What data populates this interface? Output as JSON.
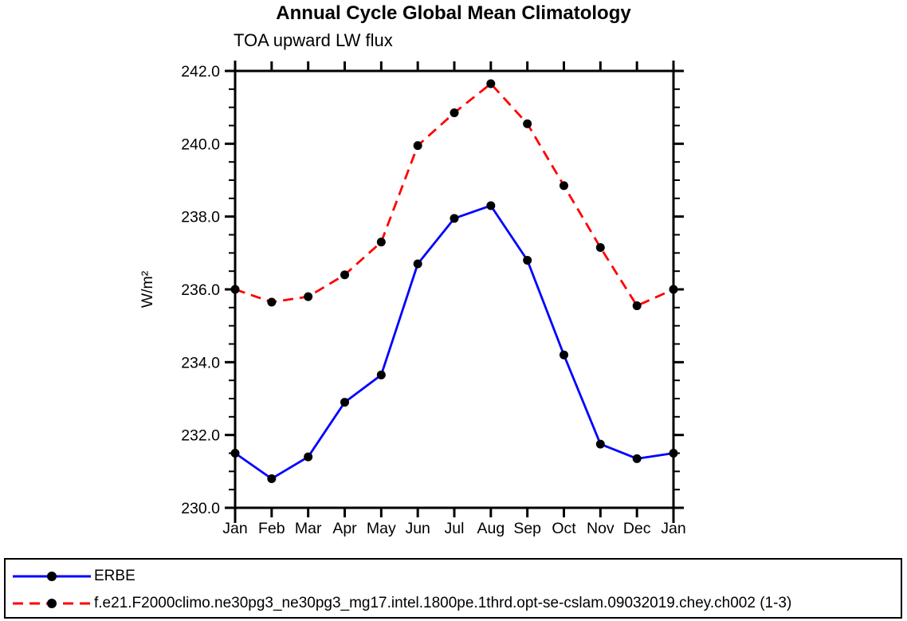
{
  "title": "Annual Cycle Global Mean Climatology",
  "subtitle": "TOA upward LW flux",
  "chart_data": {
    "type": "line",
    "title": "Annual Cycle Global Mean Climatology",
    "subtitle": "TOA upward LW flux",
    "xlabel": "",
    "ylabel": "W/m²",
    "categories": [
      "Jan",
      "Feb",
      "Mar",
      "Apr",
      "May",
      "Jun",
      "Jul",
      "Aug",
      "Sep",
      "Oct",
      "Nov",
      "Dec",
      "Jan"
    ],
    "series": [
      {
        "name": "ERBE",
        "color": "#0000ff",
        "style": "solid",
        "values": [
          231.5,
          230.8,
          231.4,
          232.9,
          233.65,
          236.7,
          237.95,
          238.3,
          236.8,
          234.2,
          231.75,
          231.35,
          231.5
        ]
      },
      {
        "name": "f.e21.F2000climo.ne30pg3_ne30pg3_mg17.intel.1800pe.1thrd.opt-se-cslam.09032019.chey.ch002 (1-3)",
        "color": "#ff0000",
        "style": "dashed",
        "values": [
          236.0,
          235.65,
          235.8,
          236.4,
          237.3,
          239.95,
          240.85,
          241.65,
          240.55,
          238.85,
          237.15,
          235.55,
          236.0
        ]
      }
    ],
    "ylim": [
      230.0,
      242.0
    ],
    "y_major_step": 2.0,
    "y_minor_step": 0.5,
    "ytick_decimals": 1,
    "grid": false,
    "marker": "filled-circle",
    "marker_color": "#000000",
    "axis_color": "#000000",
    "legend_position": "bottom-box"
  }
}
